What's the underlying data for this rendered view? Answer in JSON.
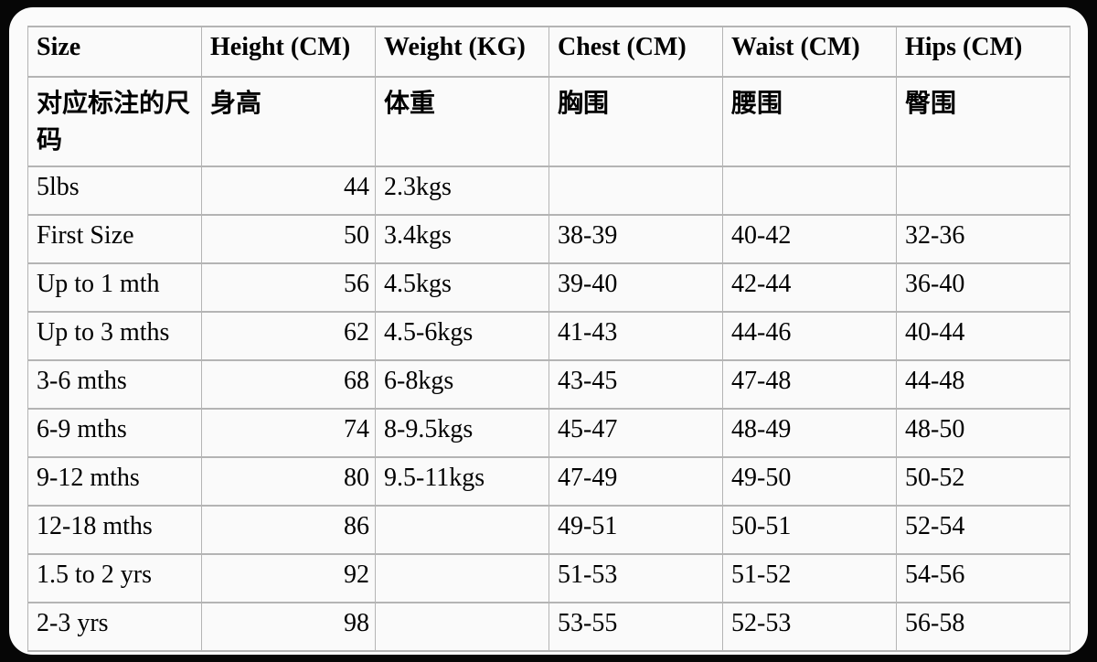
{
  "page": {
    "background_color": "#060606",
    "card_background_color": "#fbfbfb",
    "table_background_color": "#fafafa",
    "border_color": "#b4b4b4",
    "text_color": "#000000"
  },
  "table": {
    "columns": [
      "Size",
      "Height (CM)",
      "Weight (KG)",
      "Chest (CM)",
      "Waist (CM)",
      "Hips (CM)"
    ],
    "cn_headers": [
      "对应标注的尺码",
      "身高",
      "体重",
      "胸围",
      "腰围",
      "臀围"
    ],
    "rows": [
      [
        "5lbs",
        "44",
        "2.3kgs",
        "",
        "",
        ""
      ],
      [
        "First Size",
        "50",
        "3.4kgs",
        "38-39",
        "40-42",
        "32-36"
      ],
      [
        "Up to 1 mth",
        "56",
        "4.5kgs",
        "39-40",
        "42-44",
        "36-40"
      ],
      [
        "Up to 3 mths",
        "62",
        "4.5-6kgs",
        "41-43",
        "44-46",
        "40-44"
      ],
      [
        "3-6 mths",
        "68",
        "6-8kgs",
        "43-45",
        "47-48",
        "44-48"
      ],
      [
        "6-9 mths",
        "74",
        "8-9.5kgs",
        "45-47",
        "48-49",
        "48-50"
      ],
      [
        "9-12 mths",
        "80",
        "9.5-11kgs",
        "47-49",
        "49-50",
        "50-52"
      ],
      [
        "12-18 mths",
        "86",
        "",
        "49-51",
        "50-51",
        "52-54"
      ],
      [
        "1.5 to 2 yrs",
        "92",
        "",
        "51-53",
        "51-52",
        "54-56"
      ],
      [
        "2-3 yrs",
        "98",
        "",
        "53-55",
        "52-53",
        "56-58"
      ]
    ]
  }
}
